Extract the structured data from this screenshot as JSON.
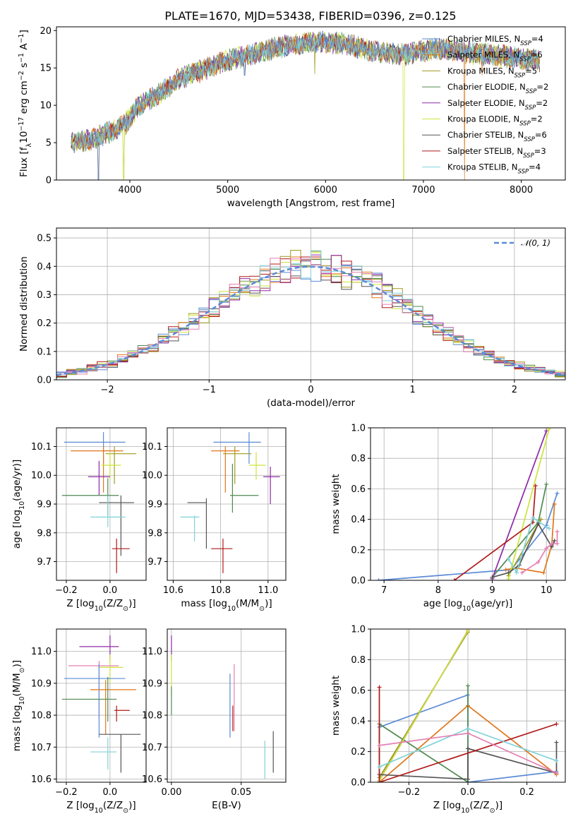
{
  "figure": {
    "title": "PLATE=1670, MJD=53438, FIBERID=0396, z=0.125"
  },
  "models": [
    {
      "name": "Chabrier MILES, N",
      "sub": "SSP",
      "n": "4",
      "color": "#5b8bd6"
    },
    {
      "name": "Salpeter MILES, N",
      "sub": "SSP",
      "n": "6",
      "color": "#e0761a"
    },
    {
      "name": "Kroupa MILES, N",
      "sub": "SSP",
      "n": "5",
      "color": "#9e9a1e"
    },
    {
      "name": "Chabrier ELODIE, N",
      "sub": "SSP",
      "n": "2",
      "color": "#4f8a4f"
    },
    {
      "name": "Salpeter ELODIE, N",
      "sub": "SSP",
      "n": "2",
      "color": "#8e2aa8"
    },
    {
      "name": "Kroupa ELODIE, N",
      "sub": "SSP",
      "n": "2",
      "color": "#cde33a"
    },
    {
      "name": "Chabrier STELIB, N",
      "sub": "SSP",
      "n": "6",
      "color": "#555555"
    },
    {
      "name": "Salpeter STELIB, N",
      "sub": "SSP",
      "n": "3",
      "color": "#b01a1a"
    },
    {
      "name": "Kroupa STELIB, N",
      "sub": "SSP",
      "n": "4",
      "color": "#7fd3d9"
    }
  ],
  "chart_data": [
    {
      "id": "spectrum",
      "type": "line",
      "xlabel": "wavelength [Angstrom, rest frame]",
      "ylabel": "Flux [f",
      "ylabel_parts": {
        "a": "Flux [f",
        "sub": "λ",
        "b": "10",
        "sup1": "−17",
        "c": " erg cm",
        "sup2": "−2",
        "d": " s",
        "sup3": "−1",
        "e": " A",
        "sup4": "−1",
        "f": "]"
      },
      "xlim": [
        3250,
        8450
      ],
      "ylim": [
        0,
        20.5
      ],
      "xticks": [
        4000,
        5000,
        6000,
        7000,
        8000
      ],
      "yticks": [
        0,
        5,
        10,
        15,
        20
      ],
      "continuum": [
        [
          3400,
          5.0
        ],
        [
          3600,
          5.3
        ],
        [
          3800,
          6.5
        ],
        [
          3950,
          7.5
        ],
        [
          4100,
          10.0
        ],
        [
          4300,
          11.5
        ],
        [
          4500,
          13.5
        ],
        [
          4800,
          15.0
        ],
        [
          5000,
          16.0
        ],
        [
          5300,
          17.0
        ],
        [
          5600,
          18.0
        ],
        [
          5900,
          18.5
        ],
        [
          6200,
          18.3
        ],
        [
          6500,
          17.2
        ],
        [
          6800,
          16.7
        ],
        [
          7000,
          17.3
        ],
        [
          7200,
          17.6
        ],
        [
          7500,
          17.0
        ],
        [
          7800,
          16.6
        ],
        [
          8200,
          16.0
        ]
      ],
      "dips": [
        [
          3680,
          0.0,
          0
        ],
        [
          3935,
          0.0,
          5
        ],
        [
          4300,
          11.5,
          0
        ],
        [
          5175,
          14.0,
          0
        ],
        [
          5890,
          14.2,
          2
        ],
        [
          6800,
          0.0,
          5
        ],
        [
          7420,
          0.0,
          1
        ],
        [
          7600,
          14.0,
          1
        ]
      ]
    },
    {
      "id": "residuals",
      "type": "histogram",
      "xlabel": "(data-model)/error",
      "ylabel": "Normed distribution",
      "legend_label": "𝒩(0, 1)",
      "xlim": [
        -2.5,
        2.5
      ],
      "ylim": [
        0,
        0.535
      ],
      "xticks": [
        -2,
        -1,
        0,
        1,
        2
      ],
      "xtick_labels": [
        "−2",
        "−1",
        "0",
        "1",
        "2"
      ],
      "yticks": [
        0,
        0.1,
        0.2,
        0.3,
        0.4,
        0.5
      ],
      "ytick_labels": [
        "0.0",
        "0.1",
        "0.2",
        "0.3",
        "0.4",
        "0.5"
      ],
      "bin_width": 0.1,
      "bin_start": -2.5
    },
    {
      "id": "age_vs_Z",
      "type": "scatter",
      "xlabel": "Z [log",
      "xlabel_parts": {
        "a": "Z [log",
        "sub": "10",
        "b": "(Z/Z",
        "sub2": "⊙",
        "c": ")]"
      },
      "ylabel_parts": {
        "a": "age  [log",
        "sub": "10",
        "b": "(age/yr)]"
      },
      "xlim": [
        -0.245,
        0.165
      ],
      "ylim": [
        9.635,
        10.165
      ],
      "xticks": [
        -0.2,
        0.0
      ],
      "xtick_labels": [
        "−0.2",
        "0.0"
      ],
      "yticks": [
        9.7,
        9.8,
        9.9,
        10.0,
        10.1
      ],
      "ytick_labels": [
        "9.7",
        "9.8",
        "9.9",
        "10.0",
        "10.1"
      ],
      "points": [
        {
          "m": 0,
          "x": -0.03,
          "y": 10.115,
          "xe": [
            -0.21,
            0.07
          ],
          "ye": [
            10.04,
            10.15
          ]
        },
        {
          "m": 2,
          "x": 0.02,
          "y": 10.075,
          "xe": [
            -0.02,
            0.12
          ],
          "ye": [
            9.97,
            10.1
          ]
        },
        {
          "m": 1,
          "x": -0.03,
          "y": 10.085,
          "xe": [
            -0.18,
            0.06
          ],
          "ye": [
            9.94,
            10.1
          ]
        },
        {
          "m": 5,
          "x": 0.0,
          "y": 10.035,
          "xe": [
            -0.04,
            0.05
          ],
          "ye": [
            9.985,
            10.08
          ]
        },
        {
          "m": 4,
          "x": -0.05,
          "y": 9.995,
          "xe": [
            -0.1,
            0.0
          ],
          "ye": [
            9.93,
            10.05
          ]
        },
        {
          "m": 3,
          "x": -0.01,
          "y": 9.93,
          "xe": [
            -0.22,
            0.04
          ],
          "ye": [
            9.86,
            9.99
          ]
        },
        {
          "m": 6,
          "x": 0.05,
          "y": 9.905,
          "xe": [
            -0.05,
            0.11
          ],
          "ye": [
            9.72,
            9.93
          ]
        },
        {
          "m": 8,
          "x": -0.01,
          "y": 9.855,
          "xe": [
            -0.09,
            0.07
          ],
          "ye": [
            9.82,
            9.93
          ]
        },
        {
          "m": 7,
          "x": 0.03,
          "y": 9.745,
          "xe": [
            0.01,
            0.09
          ],
          "ye": [
            9.66,
            9.78
          ]
        }
      ]
    },
    {
      "id": "age_vs_mass",
      "type": "scatter",
      "xlabel_parts": {
        "a": "mass [log",
        "sub": "10",
        "b": "(M/M",
        "sub2": "⊙",
        "c": ")]"
      },
      "xlim": [
        10.575,
        11.075
      ],
      "ylim": [
        9.635,
        10.165
      ],
      "xticks": [
        10.6,
        10.8,
        11.0
      ],
      "xtick_labels": [
        "10.6",
        "10.8",
        "11.0"
      ],
      "yticks": [
        9.7,
        9.8,
        9.9,
        10.0,
        10.1
      ],
      "ytick_labels": [
        "9.7",
        "9.8",
        "9.9",
        "10.0",
        "10.1"
      ],
      "points": [
        {
          "m": 0,
          "x": 10.92,
          "y": 10.115,
          "xe": [
            10.77,
            10.97
          ],
          "ye": [
            10.04,
            10.15
          ]
        },
        {
          "m": 2,
          "x": 10.86,
          "y": 10.075,
          "xe": [
            10.81,
            10.93
          ],
          "ye": [
            9.97,
            10.1
          ]
        },
        {
          "m": 1,
          "x": 10.82,
          "y": 10.085,
          "xe": [
            10.76,
            10.88
          ],
          "ye": [
            9.94,
            10.1
          ]
        },
        {
          "m": 5,
          "x": 10.95,
          "y": 10.035,
          "xe": [
            10.92,
            10.99
          ],
          "ye": [
            9.985,
            10.08
          ]
        },
        {
          "m": 4,
          "x": 11.01,
          "y": 9.995,
          "xe": [
            10.98,
            11.05
          ],
          "ye": [
            9.9,
            10.03
          ]
        },
        {
          "m": 3,
          "x": 10.85,
          "y": 9.93,
          "xe": [
            10.84,
            10.96
          ],
          "ye": [
            9.87,
            10.04
          ]
        },
        {
          "m": 6,
          "x": 10.74,
          "y": 9.905,
          "xe": [
            10.66,
            10.74
          ],
          "ye": [
            9.745,
            9.92
          ]
        },
        {
          "m": 8,
          "x": 10.69,
          "y": 9.855,
          "xe": [
            10.63,
            10.71
          ],
          "ye": [
            9.77,
            9.86
          ]
        },
        {
          "m": 7,
          "x": 10.81,
          "y": 9.745,
          "xe": [
            10.76,
            10.85
          ],
          "ye": [
            9.66,
            9.78
          ]
        }
      ]
    },
    {
      "id": "mass_weight_vs_age",
      "type": "line",
      "xlabel_parts": {
        "a": "age  [log",
        "sub": "10",
        "b": "(age/yr)]"
      },
      "ylabel": "mass weight",
      "xlim": [
        6.75,
        10.35
      ],
      "ylim": [
        0,
        1.0
      ],
      "xticks": [
        7,
        8,
        9,
        10
      ],
      "xtick_labels": [
        "7",
        "8",
        "9",
        "10"
      ],
      "yticks": [
        0,
        0.2,
        0.4,
        0.6,
        0.8,
        1.0
      ],
      "ytick_labels": [
        "0.0",
        "0.2",
        "0.4",
        "0.6",
        "0.8",
        "1.0"
      ],
      "series": [
        {
          "m": 0,
          "x": [
            6.9,
            9.35,
            10.0,
            10.2
          ],
          "y": [
            0.0,
            0.07,
            0.36,
            0.57
          ]
        },
        {
          "m": 1,
          "x": 9.25,
          "xs": [
            9.25,
            9.45,
            9.95,
            10.1,
            10.15
          ],
          "y": [
            0.07,
            0.08,
            0.05,
            0.23,
            0.5
          ]
        },
        {
          "m": 2,
          "x": [
            9.3,
            9.9
          ],
          "y": [
            0.03,
            0.4
          ]
        },
        {
          "m": 3,
          "x": [
            9.0,
            9.85,
            10.0
          ],
          "y": [
            0.02,
            0.38,
            0.63
          ]
        },
        {
          "m": 4,
          "x": [
            9.0,
            10.0
          ],
          "y": [
            0.01,
            0.98
          ]
        },
        {
          "m": 5,
          "x": [
            9.3,
            10.05
          ],
          "y": [
            0.01,
            0.99
          ]
        },
        {
          "m": 6,
          "x": [
            9.0,
            9.3,
            9.5,
            9.85,
            10.1,
            10.15
          ],
          "y": [
            0.02,
            0.05,
            0.1,
            0.37,
            0.22,
            0.26
          ]
        },
        {
          "m": 7,
          "x": [
            8.3,
            9.75,
            9.8
          ],
          "y": [
            0.0,
            0.38,
            0.62
          ]
        },
        {
          "m": 8,
          "x": [
            9.3,
            9.45,
            9.75,
            10.05
          ],
          "y": [
            0.14,
            0.05,
            0.41,
            0.34
          ]
        },
        {
          "m": 9,
          "x": [
            9.55,
            9.85,
            10.0,
            10.1,
            10.2,
            10.2
          ],
          "y": [
            0.05,
            0.12,
            0.21,
            0.24,
            0.24,
            0.32
          ]
        }
      ]
    },
    {
      "id": "mass_vs_Z",
      "type": "scatter",
      "xlabel_parts": {
        "a": "Z [log",
        "sub": "10",
        "b": "(Z/Z",
        "sub2": "⊙",
        "c": ")]"
      },
      "ylabel_parts": {
        "a": "mass [log",
        "sub": "10",
        "b": "(M/M",
        "sub2": "⊙",
        "c": ")]"
      },
      "xlim": [
        -0.245,
        0.165
      ],
      "ylim": [
        10.59,
        11.07
      ],
      "xticks": [
        -0.2,
        0.0
      ],
      "xtick_labels": [
        "−0.2",
        "0.0"
      ],
      "yticks": [
        10.6,
        10.7,
        10.8,
        10.9,
        11.0
      ],
      "ytick_labels": [
        "10.6",
        "10.7",
        "10.8",
        "10.9",
        "11.0"
      ],
      "points": [
        {
          "m": 4,
          "x": 0.0,
          "y": 11.015,
          "xe": [
            -0.14,
            0.04
          ],
          "ye": [
            10.97,
            11.05
          ]
        },
        {
          "m": 5,
          "x": 0.0,
          "y": 10.95,
          "xe": [
            -0.05,
            0.06
          ],
          "ye": [
            10.9,
            10.99
          ]
        },
        {
          "m": 9,
          "x": -0.05,
          "y": 10.955,
          "xe": [
            -0.19,
            0.04
          ],
          "ye": [
            10.79,
            10.97
          ]
        },
        {
          "m": 0,
          "x": -0.05,
          "y": 10.915,
          "xe": [
            -0.21,
            0.07
          ],
          "ye": [
            10.73,
            10.96
          ]
        },
        {
          "m": 1,
          "x": -0.02,
          "y": 10.88,
          "xe": [
            -0.09,
            0.12
          ],
          "ye": [
            10.74,
            10.91
          ]
        },
        {
          "m": 3,
          "x": -0.01,
          "y": 10.85,
          "xe": [
            -0.22,
            0.03
          ],
          "ye": [
            10.78,
            10.92
          ]
        },
        {
          "m": 7,
          "x": 0.03,
          "y": 10.815,
          "xe": [
            0.02,
            0.09
          ],
          "ye": [
            10.78,
            10.83
          ]
        },
        {
          "m": 6,
          "x": 0.05,
          "y": 10.74,
          "xe": [
            -0.05,
            0.14
          ],
          "ye": [
            10.62,
            10.74
          ]
        },
        {
          "m": 8,
          "x": -0.01,
          "y": 10.685,
          "xe": [
            -0.09,
            0.03
          ],
          "ye": [
            10.63,
            10.73
          ]
        }
      ]
    },
    {
      "id": "mass_vs_EBV",
      "type": "scatter",
      "xlabel": "E(B-V)",
      "xlim": [
        -0.003,
        0.082
      ],
      "ylim": [
        10.59,
        11.07
      ],
      "xticks": [
        0.0,
        0.05
      ],
      "xtick_labels": [
        "0.00",
        "0.05"
      ],
      "yticks": [
        10.6,
        10.7,
        10.8,
        10.9,
        11.0
      ],
      "ytick_labels": [
        "10.6",
        "10.7",
        "10.8",
        "10.9",
        "11.0"
      ],
      "points": [
        {
          "m": 4,
          "x": 0.0,
          "y": 11.0,
          "ye": [
            10.97,
            11.05
          ]
        },
        {
          "m": 5,
          "x": 0.0,
          "y": 10.9,
          "ye": [
            10.86,
            10.99
          ]
        },
        {
          "m": 3,
          "x": 0.0,
          "y": 10.85,
          "ye": [
            10.8,
            10.89
          ]
        },
        {
          "m": 0,
          "x": 0.042,
          "y": 10.83,
          "ye": [
            10.73,
            10.93
          ]
        },
        {
          "m": 9,
          "x": 0.045,
          "y": 10.85,
          "ye": [
            10.75,
            10.96
          ]
        },
        {
          "m": 7,
          "x": 0.044,
          "y": 10.79,
          "ye": [
            10.75,
            10.83
          ]
        },
        {
          "m": 8,
          "x": 0.067,
          "y": 10.66,
          "ye": [
            10.6,
            10.72
          ]
        },
        {
          "m": 6,
          "x": 0.073,
          "y": 10.69,
          "ye": [
            10.62,
            10.75
          ]
        }
      ]
    },
    {
      "id": "mass_weight_vs_Z",
      "type": "line",
      "xlabel_parts": {
        "a": "Z [log",
        "sub": "10",
        "b": "(Z/Z",
        "sub2": "⊙",
        "c": ")]"
      },
      "ylabel": "mass weight",
      "xlim": [
        -0.33,
        0.33
      ],
      "ylim": [
        0,
        1.0
      ],
      "xticks": [
        -0.2,
        0.0,
        0.2
      ],
      "xtick_labels": [
        "−0.2",
        "0.0",
        "0.2"
      ],
      "yticks": [
        0,
        0.2,
        0.4,
        0.6,
        0.8,
        1.0
      ],
      "ytick_labels": [
        "0.0",
        "0.2",
        "0.4",
        "0.6",
        "0.8",
        "1.0"
      ],
      "series": [
        {
          "m": 0,
          "x": [
            -0.3,
            0.0,
            0.0,
            0.3
          ],
          "y": [
            0.36,
            0.57,
            0.0,
            0.07
          ]
        },
        {
          "m": 1,
          "x": [
            -0.3,
            0.0,
            0.3
          ],
          "y": [
            0.0,
            0.5,
            0.05
          ]
        },
        {
          "m": 2,
          "x": [
            -0.3,
            0.0
          ],
          "y": [
            0.03,
            0.98
          ]
        },
        {
          "m": 3,
          "x": [
            -0.3,
            -0.3,
            0.0,
            0.0
          ],
          "y": [
            0.0,
            0.38,
            0.0,
            0.63
          ]
        },
        {
          "m": 4,
          "x": [
            -0.3,
            0.0
          ],
          "y": [
            0.01,
            0.99
          ]
        },
        {
          "m": 5,
          "x": [
            -0.3,
            0.0
          ],
          "y": [
            0.01,
            0.99
          ]
        },
        {
          "m": 6,
          "x": [
            -0.3,
            0.0,
            0.0,
            0.3,
            0.3
          ],
          "y": [
            0.05,
            0.02,
            0.22,
            0.06,
            0.26
          ]
        },
        {
          "m": 7,
          "x": [
            -0.3,
            -0.3,
            0.3
          ],
          "y": [
            0.62,
            0.0,
            0.38
          ]
        },
        {
          "m": 8,
          "x": [
            -0.3,
            0.0,
            0.3
          ],
          "y": [
            0.1,
            0.35,
            0.14
          ]
        },
        {
          "m": 9,
          "x": [
            -0.3,
            0.0,
            0.3
          ],
          "y": [
            0.24,
            0.32,
            0.06
          ]
        }
      ]
    }
  ]
}
